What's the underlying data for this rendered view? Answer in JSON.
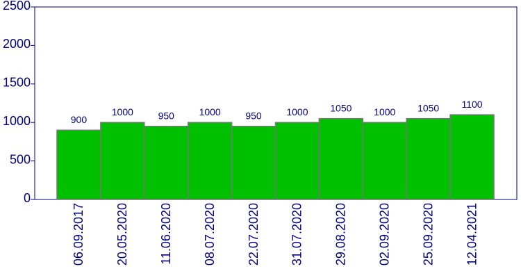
{
  "chart_data": {
    "type": "bar",
    "categories": [
      "06.09.2017",
      "20.05.2020",
      "11.06.2020",
      "08.07.2020",
      "22.07.2020",
      "31.07.2020",
      "29.08.2020",
      "02.09.2020",
      "25.09.2020",
      "12.04.2021"
    ],
    "values": [
      900,
      1000,
      950,
      1000,
      950,
      1000,
      1050,
      1000,
      1050,
      1100
    ],
    "color": "#00c000",
    "ylim": [
      0,
      2500
    ],
    "yticks": [
      0,
      500,
      1000,
      1500,
      2000,
      2500
    ]
  }
}
